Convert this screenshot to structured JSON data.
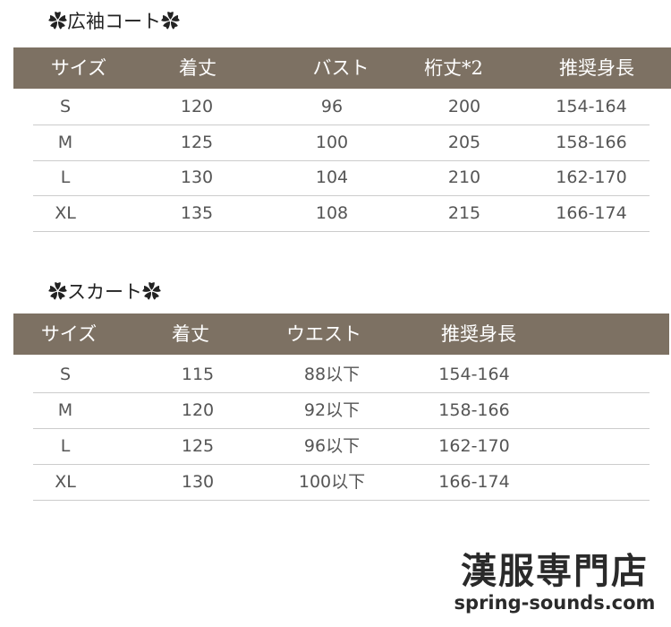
{
  "coat": {
    "title": "✿広袖コート✿",
    "headers": [
      "サイズ",
      "着丈",
      "バスト",
      "桁丈*2",
      "推奨身長"
    ],
    "rows": [
      [
        "S",
        "120",
        "96",
        "200",
        "154-164"
      ],
      [
        "M",
        "125",
        "100",
        "205",
        "158-166"
      ],
      [
        "L",
        "130",
        "104",
        "210",
        "162-170"
      ],
      [
        "XL",
        "135",
        "108",
        "215",
        "166-174"
      ]
    ]
  },
  "skirt": {
    "title": "✿スカート✿",
    "headers": [
      "サイズ",
      "着丈",
      "ウエスト",
      "推奨身長"
    ],
    "rows": [
      [
        "S",
        "115",
        "88以下",
        "154-164"
      ],
      [
        "M",
        "120",
        "92以下",
        "158-166"
      ],
      [
        "L",
        "125",
        "96以下",
        "162-170"
      ],
      [
        "XL",
        "130",
        "100以下",
        "166-174"
      ]
    ]
  },
  "logo": {
    "name": "漢服専門店",
    "url": "spring-sounds.com"
  },
  "colors": {
    "header_bg": "#7d7163",
    "header_text": "#ffffff"
  }
}
